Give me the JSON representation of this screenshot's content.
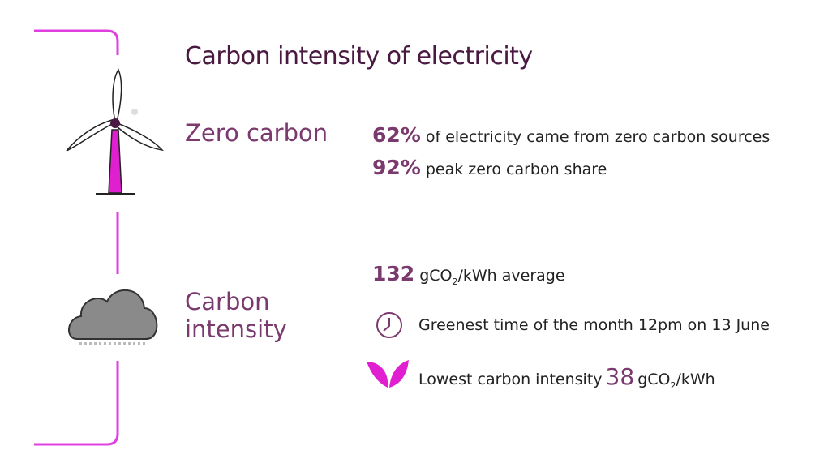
{
  "title": "Carbon intensity of electricity",
  "zero_carbon": {
    "label": "Zero carbon",
    "stats": [
      {
        "value": "62%",
        "text": "of electricity came from zero carbon sources"
      },
      {
        "value": "92%",
        "text": "peak zero carbon share"
      }
    ]
  },
  "carbon_intensity": {
    "label": "Carbon intensity",
    "average": {
      "value": "132",
      "unit": "gCO",
      "sub": "2",
      "text": "/kWh average"
    },
    "greenest": "Greenest time of the month 12pm on 13 June",
    "lowest": {
      "text": "Lowest carbon intensity",
      "value": "38",
      "unit": "gCO",
      "sub": "2",
      "rest": "/kWh"
    }
  }
}
